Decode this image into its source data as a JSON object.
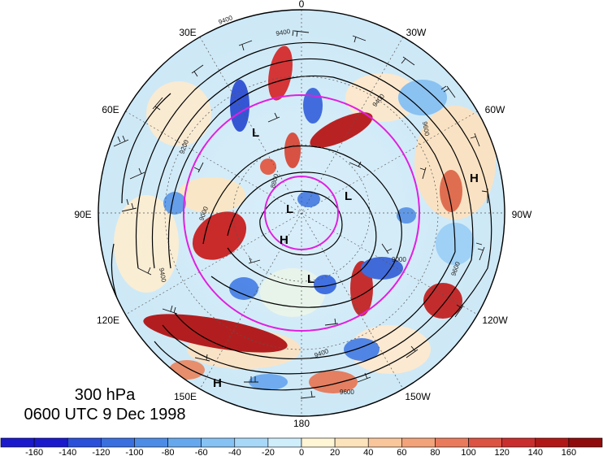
{
  "caption": {
    "level": "300 hPa",
    "time": "0600 UTC 9 Dec 1998"
  },
  "longitude_labels": [
    "0",
    "30W",
    "60W",
    "90W",
    "120W",
    "150W",
    "180",
    "150E",
    "120E",
    "90E",
    "60E",
    "30E"
  ],
  "pressure_centers": [
    {
      "label": "L",
      "name": "low-1"
    },
    {
      "label": "L",
      "name": "low-2"
    },
    {
      "label": "L",
      "name": "low-3"
    },
    {
      "label": "L",
      "name": "low-4"
    },
    {
      "label": "H",
      "name": "high-1"
    },
    {
      "label": "H",
      "name": "high-2"
    },
    {
      "label": "H",
      "name": "high-3"
    }
  ],
  "contour_labels": [
    "9400",
    "9400",
    "9400",
    "9400",
    "9600",
    "9600",
    "9000",
    "9000",
    "9200",
    "8800",
    "9400",
    "9600"
  ],
  "colorbar": {
    "ticks": [
      "-160",
      "-140",
      "-120",
      "-100",
      "-80",
      "-60",
      "-40",
      "-20",
      "0",
      "20",
      "40",
      "60",
      "80",
      "100",
      "120",
      "140",
      "160"
    ],
    "colors": [
      "#1a1acc",
      "#2a4fd9",
      "#3a6fe0",
      "#4d8ce6",
      "#66a8ee",
      "#86c2f4",
      "#a8d8f8",
      "#cfeefc",
      "#fff6d6",
      "#fde3bb",
      "#f8c69a",
      "#f2a37a",
      "#e97b5c",
      "#dc5243",
      "#c92d2d",
      "#b01818",
      "#900c0c"
    ]
  },
  "colors": {
    "circle_accent": "#e020e0"
  }
}
